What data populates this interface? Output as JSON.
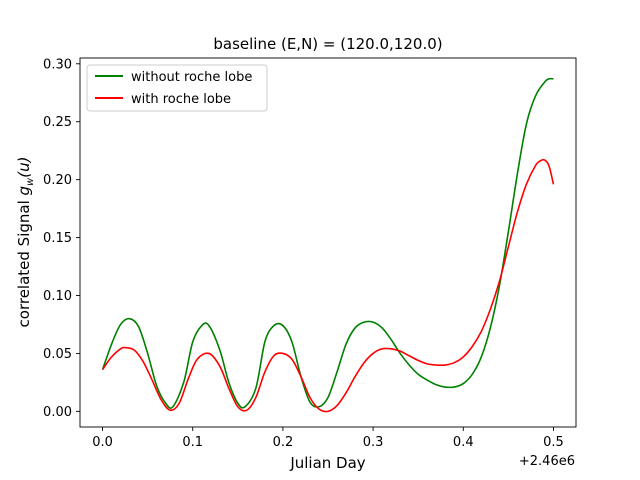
{
  "chart_data": {
    "type": "line",
    "title": "baseline (E,N) = (120.0,120.0)",
    "xlabel": "Julian Day",
    "ylabel_main": "correlated Signal ",
    "ylabel_math_base": "g",
    "ylabel_math_sub": "w",
    "ylabel_math_tail": "(u)",
    "x_offset_label": "+2.46e6",
    "xlim": [
      -0.025,
      0.525
    ],
    "ylim": [
      -0.0135,
      0.305
    ],
    "x_ticks": [
      0.0,
      0.1,
      0.2,
      0.3,
      0.4,
      0.5
    ],
    "x_tick_labels": [
      "0.0",
      "0.1",
      "0.2",
      "0.3",
      "0.4",
      "0.5"
    ],
    "y_ticks": [
      0.0,
      0.05,
      0.1,
      0.15,
      0.2,
      0.25,
      0.3
    ],
    "y_tick_labels": [
      "0.00",
      "0.05",
      "0.10",
      "0.15",
      "0.20",
      "0.25",
      "0.30"
    ],
    "legend_position": "top-left",
    "grid": false,
    "series": [
      {
        "name": "without roche lobe",
        "color": "#008000",
        "x": [
          0.0,
          0.01,
          0.02,
          0.03,
          0.04,
          0.05,
          0.06,
          0.07,
          0.078,
          0.09,
          0.1,
          0.11,
          0.118,
          0.13,
          0.14,
          0.15,
          0.158,
          0.17,
          0.18,
          0.19,
          0.2,
          0.21,
          0.22,
          0.23,
          0.24,
          0.25,
          0.26,
          0.27,
          0.28,
          0.29,
          0.3,
          0.31,
          0.32,
          0.33,
          0.34,
          0.35,
          0.36,
          0.37,
          0.38,
          0.39,
          0.4,
          0.41,
          0.42,
          0.43,
          0.44,
          0.45,
          0.46,
          0.47,
          0.48,
          0.49,
          0.495,
          0.5
        ],
        "y": [
          0.036,
          0.058,
          0.075,
          0.08,
          0.073,
          0.05,
          0.022,
          0.007,
          0.004,
          0.025,
          0.06,
          0.074,
          0.074,
          0.053,
          0.025,
          0.007,
          0.004,
          0.02,
          0.06,
          0.074,
          0.074,
          0.06,
          0.03,
          0.008,
          0.004,
          0.012,
          0.034,
          0.058,
          0.072,
          0.077,
          0.077,
          0.072,
          0.062,
          0.05,
          0.04,
          0.032,
          0.027,
          0.023,
          0.021,
          0.021,
          0.024,
          0.032,
          0.047,
          0.072,
          0.108,
          0.155,
          0.205,
          0.248,
          0.272,
          0.284,
          0.287,
          0.287
        ]
      },
      {
        "name": "with roche lobe",
        "color": "#ff0000",
        "x": [
          0.0,
          0.01,
          0.02,
          0.025,
          0.035,
          0.045,
          0.055,
          0.065,
          0.075,
          0.085,
          0.095,
          0.105,
          0.118,
          0.13,
          0.14,
          0.15,
          0.16,
          0.17,
          0.18,
          0.19,
          0.2,
          0.21,
          0.22,
          0.23,
          0.24,
          0.25,
          0.26,
          0.27,
          0.28,
          0.29,
          0.3,
          0.31,
          0.32,
          0.33,
          0.34,
          0.35,
          0.36,
          0.37,
          0.38,
          0.39,
          0.4,
          0.41,
          0.42,
          0.43,
          0.44,
          0.45,
          0.46,
          0.47,
          0.48,
          0.485,
          0.49,
          0.495,
          0.5
        ],
        "y": [
          0.036,
          0.047,
          0.054,
          0.055,
          0.053,
          0.043,
          0.027,
          0.01,
          0.001,
          0.007,
          0.028,
          0.045,
          0.05,
          0.039,
          0.02,
          0.004,
          0.001,
          0.012,
          0.034,
          0.048,
          0.05,
          0.045,
          0.03,
          0.012,
          0.002,
          0.0,
          0.005,
          0.016,
          0.03,
          0.042,
          0.05,
          0.054,
          0.054,
          0.052,
          0.048,
          0.044,
          0.041,
          0.04,
          0.04,
          0.042,
          0.047,
          0.056,
          0.069,
          0.088,
          0.112,
          0.142,
          0.172,
          0.196,
          0.212,
          0.216,
          0.217,
          0.212,
          0.196
        ]
      }
    ]
  }
}
